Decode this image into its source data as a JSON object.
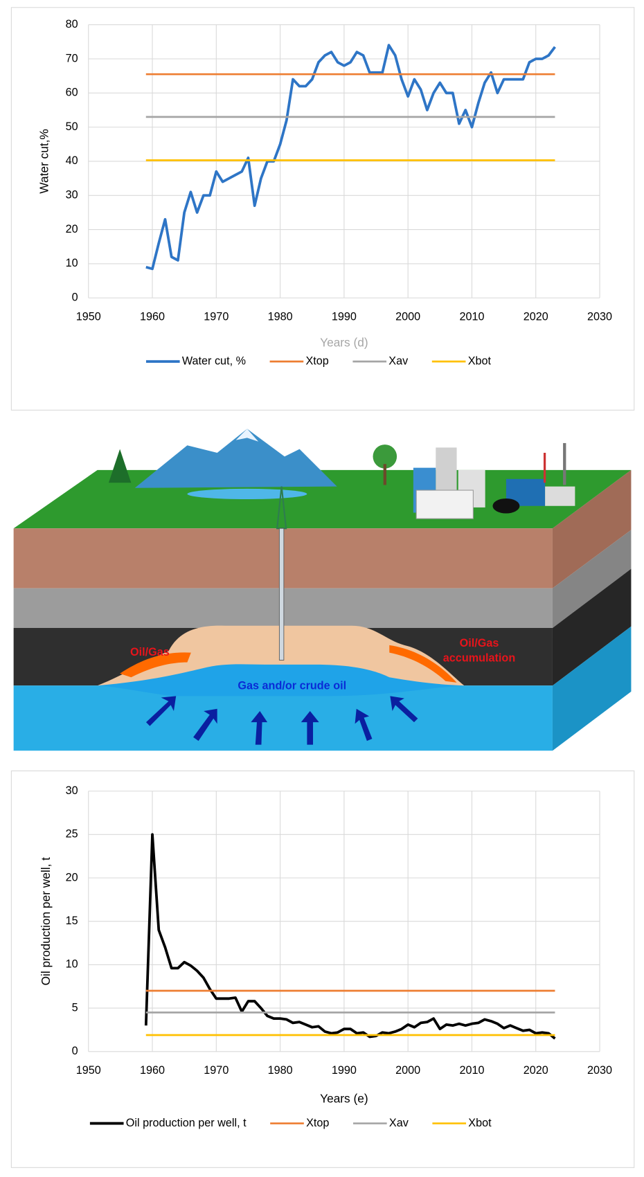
{
  "chart_data": [
    {
      "type": "line",
      "x_label": "Years (d)",
      "y_label": "Water cut,%",
      "xlim": [
        1950,
        2030
      ],
      "xticks": [
        1950,
        1960,
        1970,
        1980,
        1990,
        2000,
        2010,
        2020,
        2030
      ],
      "ylim": [
        0,
        80
      ],
      "yticks": [
        0,
        10,
        20,
        30,
        40,
        50,
        60,
        70,
        80
      ],
      "grid": true,
      "series": [
        {
          "name": "Water cut, %",
          "color": "#2e75c6",
          "x": [
            1959,
            1960,
            1961,
            1962,
            1963,
            1964,
            1965,
            1966,
            1967,
            1968,
            1969,
            1970,
            1971,
            1972,
            1973,
            1974,
            1975,
            1976,
            1977,
            1978,
            1979,
            1980,
            1981,
            1982,
            1983,
            1984,
            1985,
            1986,
            1987,
            1988,
            1989,
            1990,
            1991,
            1992,
            1993,
            1994,
            1995,
            1996,
            1997,
            1998,
            1999,
            2000,
            2001,
            2002,
            2003,
            2004,
            2005,
            2006,
            2007,
            2008,
            2009,
            2010,
            2011,
            2012,
            2013,
            2014,
            2015,
            2016,
            2017,
            2018,
            2019,
            2020,
            2021,
            2022,
            2023
          ],
          "values": [
            9,
            8.5,
            16,
            23,
            12,
            11,
            25,
            31,
            25,
            30,
            30,
            37,
            34,
            35,
            36,
            37,
            41,
            27,
            35,
            40,
            40,
            45,
            52,
            64,
            62,
            62,
            64,
            69,
            71,
            72,
            69,
            68,
            69,
            72,
            71,
            66,
            66,
            66,
            74,
            71,
            64,
            59,
            64,
            61,
            55,
            60,
            63,
            60,
            60,
            51,
            55,
            50,
            57,
            63,
            66,
            60,
            64,
            64,
            64,
            64,
            69,
            70,
            70,
            71,
            73.5
          ]
        },
        {
          "name": "Xtop",
          "color": "#ed7d31",
          "x": [
            1959,
            2023
          ],
          "values": [
            65.5,
            65.5
          ]
        },
        {
          "name": "Xav",
          "color": "#a5a5a5",
          "x": [
            1959,
            2023
          ],
          "values": [
            53,
            53
          ]
        },
        {
          "name": "Xbot",
          "color": "#ffc000",
          "x": [
            1959,
            2023
          ],
          "values": [
            40.3,
            40.3
          ]
        }
      ]
    },
    {
      "type": "line",
      "x_label": "Years (e)",
      "y_label": "Oil production per well, t",
      "xlim": [
        1950,
        2030
      ],
      "xticks": [
        1950,
        1960,
        1970,
        1980,
        1990,
        2000,
        2010,
        2020,
        2030
      ],
      "ylim": [
        0,
        30
      ],
      "yticks": [
        0,
        5,
        10,
        15,
        20,
        25,
        30
      ],
      "grid": true,
      "series": [
        {
          "name": "Oil production per well, t",
          "color": "#000000",
          "x": [
            1959,
            1960,
            1961,
            1962,
            1963,
            1964,
            1965,
            1966,
            1967,
            1968,
            1969,
            1970,
            1971,
            1972,
            1973,
            1974,
            1975,
            1976,
            1977,
            1978,
            1979,
            1980,
            1981,
            1982,
            1983,
            1984,
            1985,
            1986,
            1987,
            1988,
            1989,
            1990,
            1991,
            1992,
            1993,
            1994,
            1995,
            1996,
            1997,
            1998,
            1999,
            2000,
            2001,
            2002,
            2003,
            2004,
            2005,
            2006,
            2007,
            2008,
            2009,
            2010,
            2011,
            2012,
            2013,
            2014,
            2015,
            2016,
            2017,
            2018,
            2019,
            2020,
            2021,
            2022,
            2023
          ],
          "values": [
            3,
            25,
            14,
            12,
            9.6,
            9.6,
            10.3,
            9.9,
            9.3,
            8.5,
            7.2,
            6.1,
            6.1,
            6.1,
            6.2,
            4.6,
            5.8,
            5.8,
            5,
            4.1,
            3.8,
            3.8,
            3.7,
            3.3,
            3.4,
            3.1,
            2.8,
            2.9,
            2.3,
            2.1,
            2.2,
            2.6,
            2.6,
            2.1,
            2.2,
            1.7,
            1.8,
            2.2,
            2.1,
            2.3,
            2.6,
            3.1,
            2.8,
            3.3,
            3.4,
            3.8,
            2.6,
            3.1,
            3,
            3.2,
            3,
            3.2,
            3.3,
            3.7,
            3.5,
            3.2,
            2.7,
            3,
            2.7,
            2.4,
            2.5,
            2.1,
            2.2,
            2.1,
            1.5
          ]
        },
        {
          "name": "Xtop",
          "color": "#ed7d31",
          "x": [
            1959,
            2023
          ],
          "values": [
            7,
            7
          ]
        },
        {
          "name": "Xav",
          "color": "#a5a5a5",
          "x": [
            1959,
            2023
          ],
          "values": [
            4.5,
            4.5
          ]
        },
        {
          "name": "Xbot",
          "color": "#ffc000",
          "x": [
            1959,
            2023
          ],
          "values": [
            1.9,
            1.9
          ]
        }
      ]
    }
  ],
  "illustration": {
    "left_label": "Oil/Gas",
    "right_label": [
      "Oil/Gas",
      "accumulation"
    ],
    "center_label": "Gas and/or crude oil"
  }
}
